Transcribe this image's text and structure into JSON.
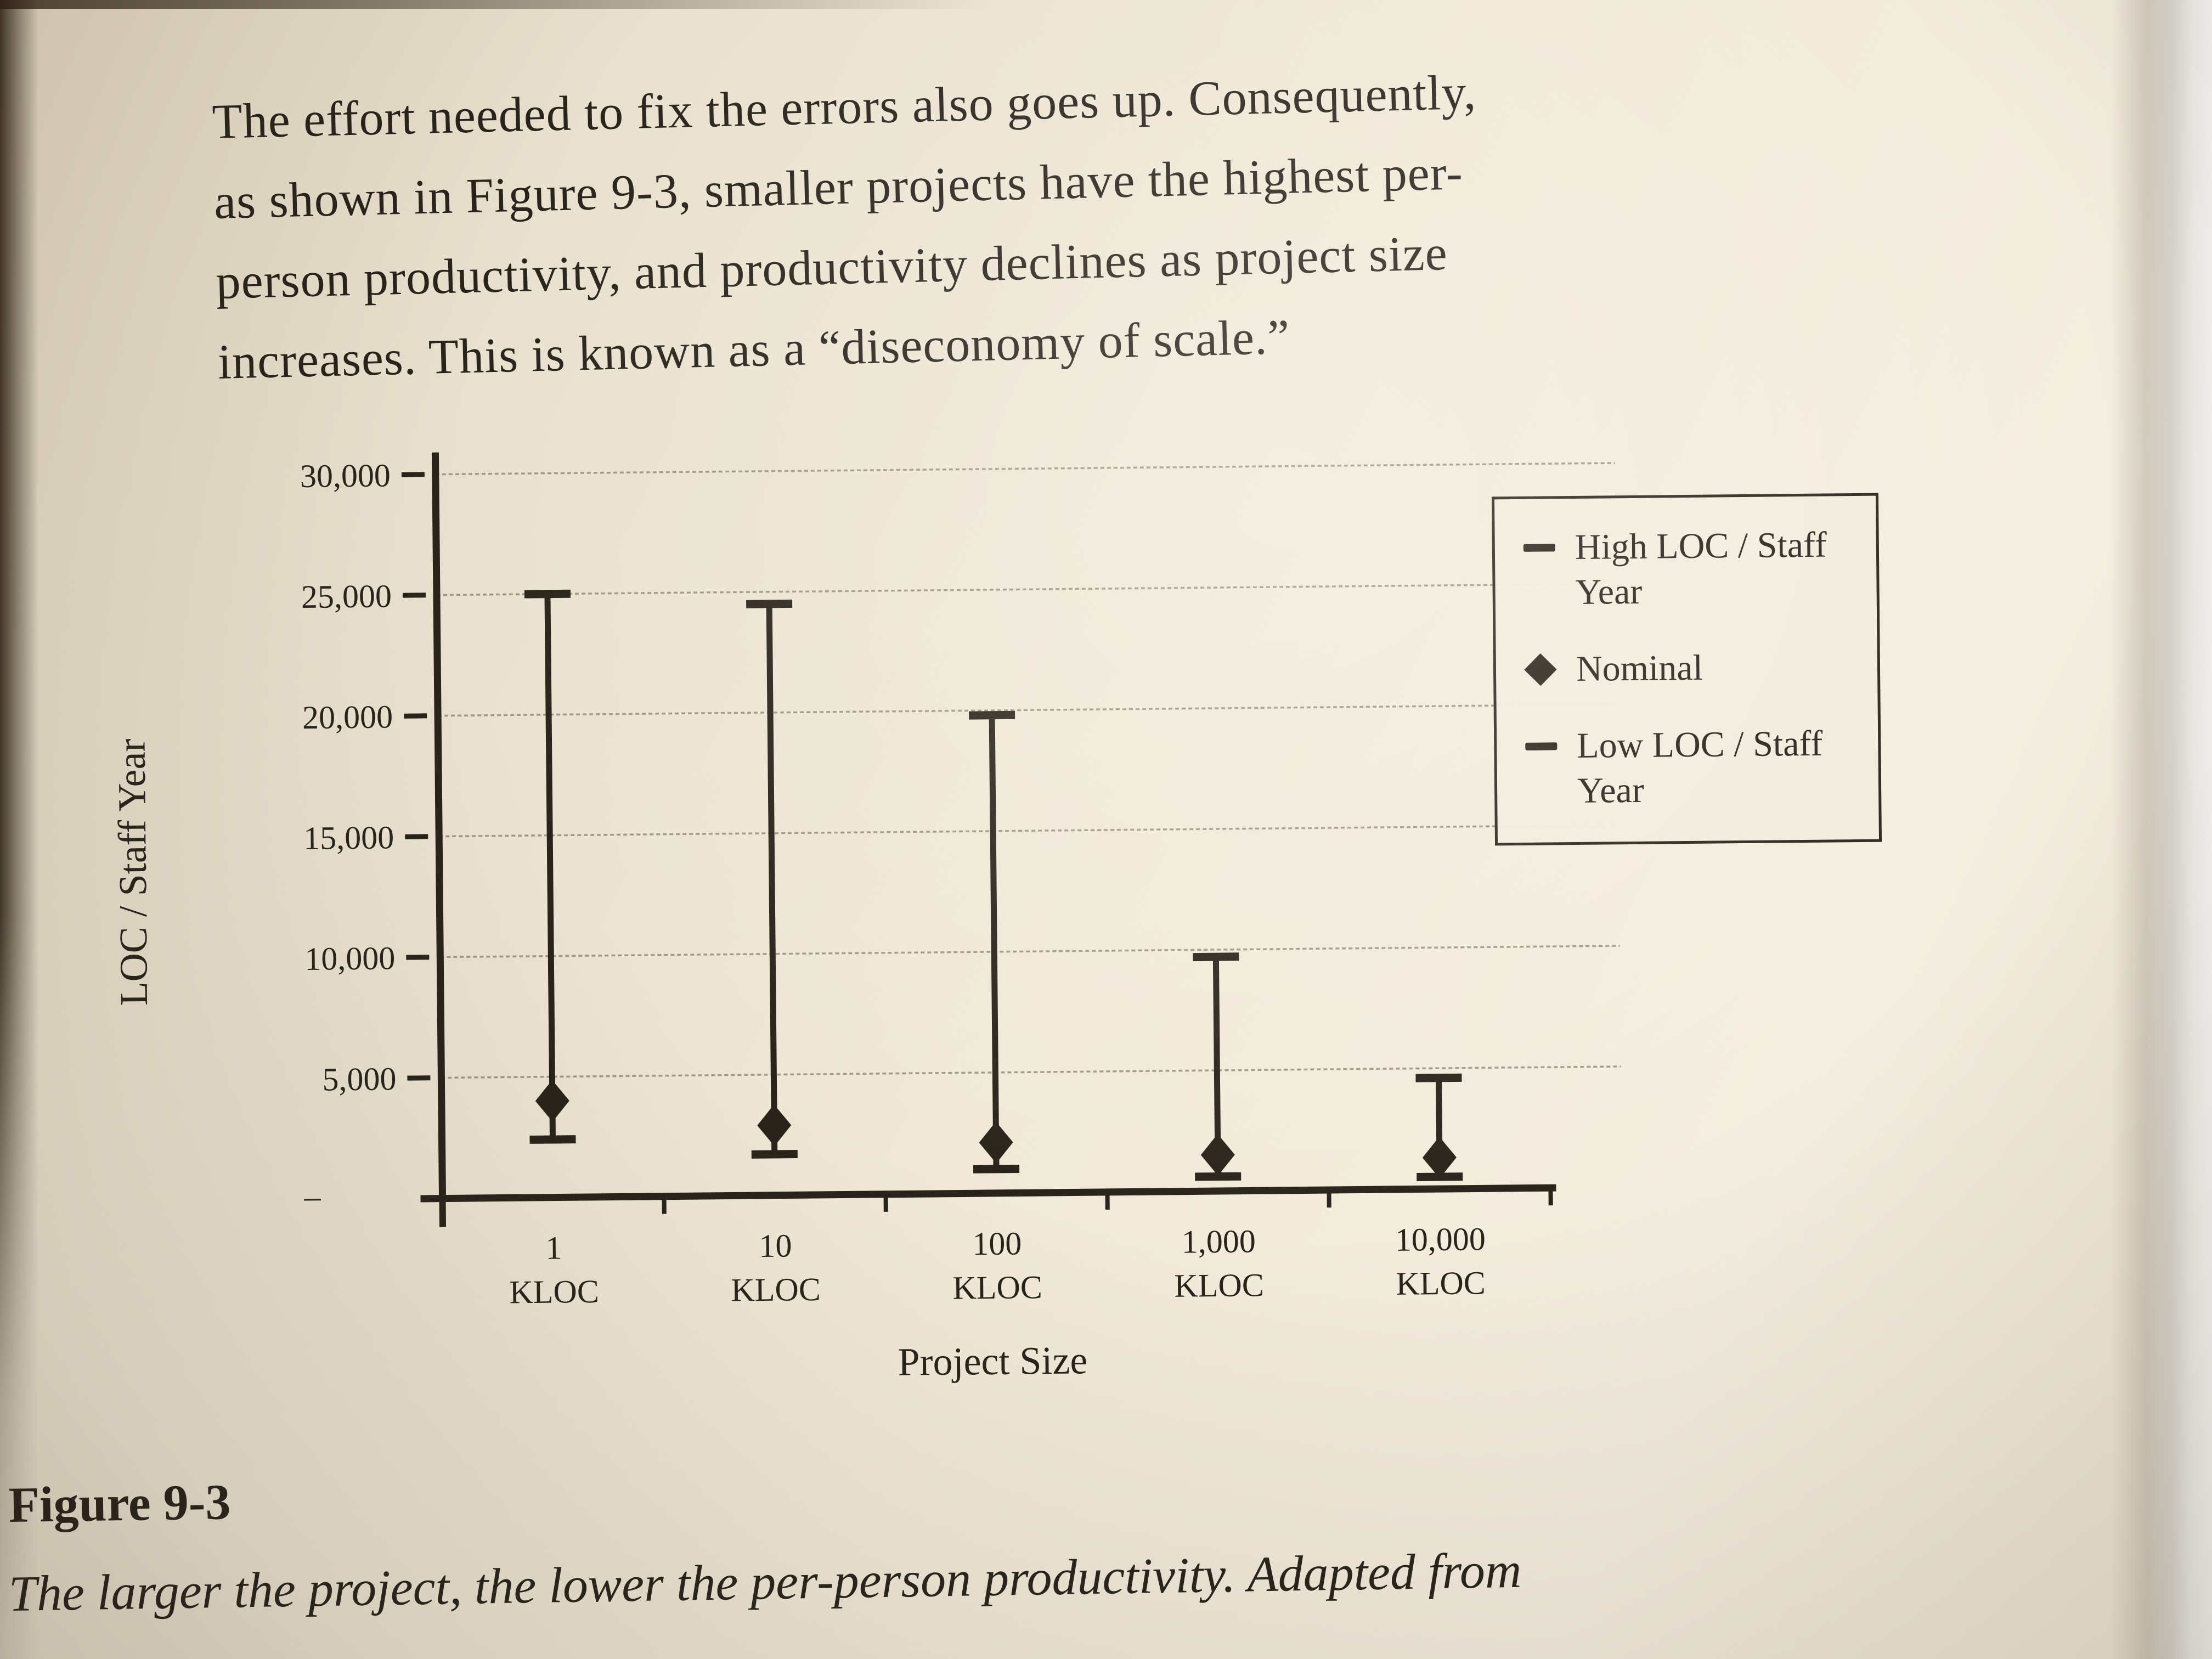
{
  "page_text": {
    "paragraph_lines": [
      "The effort needed to fix the errors also goes up. Consequently,",
      "as shown in Figure 9-3, smaller projects have the highest per-",
      "person productivity, and productivity declines as project size",
      "increases. This is known as a “diseconomy of scale.”"
    ],
    "figure_label": "Figure 9-3",
    "figure_caption": "The larger the project, the lower the per-person productivity. Adapted from"
  },
  "chart_data": {
    "type": "range-bar",
    "title": "",
    "xlabel": "Project Size",
    "ylabel": "LOC / Staff Year",
    "categories": [
      "1",
      "10",
      "100",
      "1,000",
      "10,000"
    ],
    "category_unit": "KLOC",
    "ylim": [
      0,
      30000
    ],
    "grid": true,
    "legend_position": "upper right",
    "yticks": [
      {
        "label": "30,000",
        "value": 30000
      },
      {
        "label": "25,000",
        "value": 25000
      },
      {
        "label": "20,000",
        "value": 20000
      },
      {
        "label": "15,000",
        "value": 15000
      },
      {
        "label": "10,000",
        "value": 10000
      },
      {
        "label": "5,000",
        "value": 5000
      },
      {
        "label": "–",
        "value": 0
      }
    ],
    "series": [
      {
        "name": "High LOC / Staff Year",
        "marker": "dash",
        "values": [
          25000,
          24500,
          19800,
          9700,
          4600
        ]
      },
      {
        "name": "Nominal",
        "marker": "diamond",
        "values": [
          4000,
          2900,
          2100,
          1500,
          1300
        ]
      },
      {
        "name": "Low LOC / Staff Year",
        "marker": "dash",
        "values": [
          2400,
          1700,
          1000,
          600,
          500
        ]
      }
    ]
  }
}
